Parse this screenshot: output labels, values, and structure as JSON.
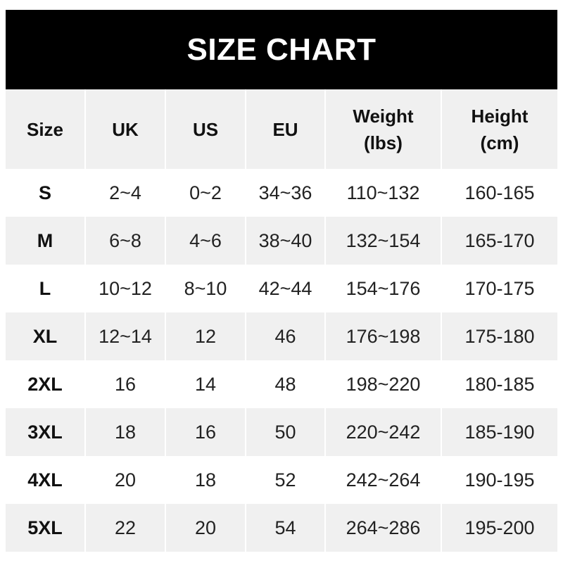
{
  "title": "SIZE CHART",
  "headers": [
    "Size",
    "UK",
    "US",
    "EU",
    "Weight\n(lbs)",
    "Height\n(cm)"
  ],
  "rows": [
    [
      "S",
      "2~4",
      "0~2",
      "34~36",
      "110~132",
      "160-165"
    ],
    [
      "M",
      "6~8",
      "4~6",
      "38~40",
      "132~154",
      "165-170"
    ],
    [
      "L",
      "10~12",
      "8~10",
      "42~44",
      "154~176",
      "170-175"
    ],
    [
      "XL",
      "12~14",
      "12",
      "46",
      "176~198",
      "175-180"
    ],
    [
      "2XL",
      "16",
      "14",
      "48",
      "198~220",
      "180-185"
    ],
    [
      "3XL",
      "18",
      "16",
      "50",
      "220~242",
      "185-190"
    ],
    [
      "4XL",
      "20",
      "18",
      "52",
      "242~264",
      "190-195"
    ],
    [
      "5XL",
      "22",
      "20",
      "54",
      "264~286",
      "195-200"
    ]
  ],
  "colors": {
    "title_bg": "#000000",
    "stripe": "#f0f0f0"
  }
}
